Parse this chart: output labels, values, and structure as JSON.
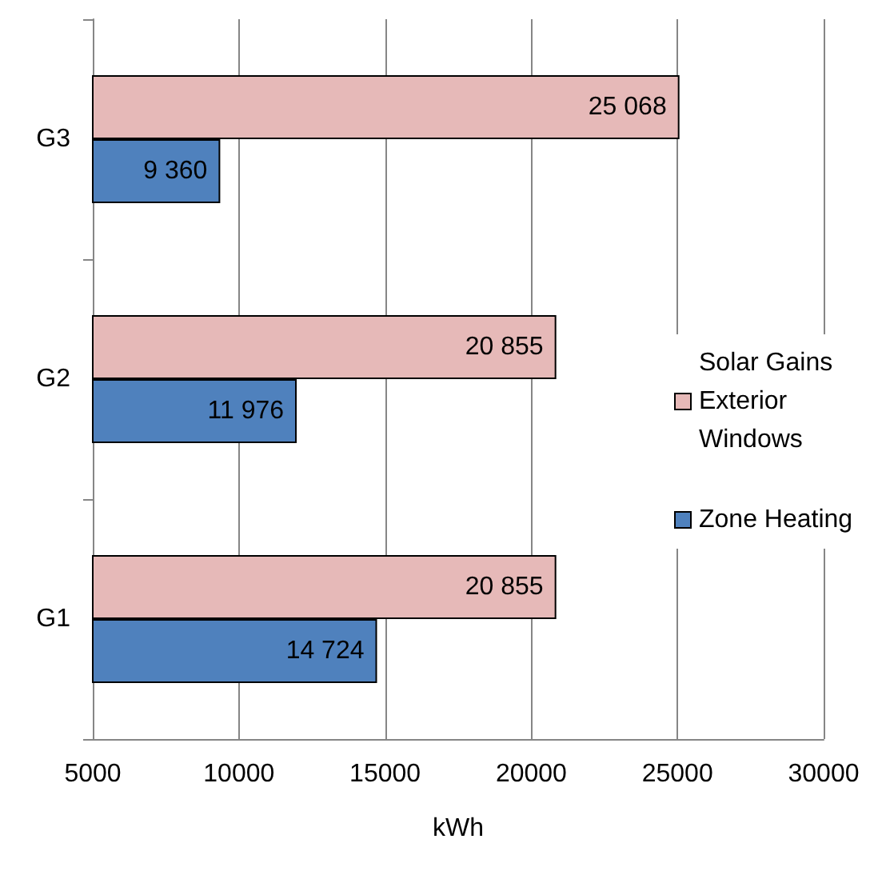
{
  "chart_data": {
    "type": "bar",
    "orientation": "horizontal",
    "xlabel": "kWh",
    "categories": [
      "G3",
      "G2",
      "G1"
    ],
    "series": [
      {
        "name": "Solar Gains Exterior Windows",
        "color": "#e6b9b8",
        "values": [
          25068,
          20855,
          20855
        ],
        "value_labels": [
          "25 068",
          "20 855",
          "20 855"
        ]
      },
      {
        "name": "Zone Heating",
        "color": "#4f81bd",
        "values": [
          9360,
          11976,
          14724
        ],
        "value_labels": [
          "9 360",
          "11 976",
          "14 724"
        ]
      }
    ],
    "xlim": [
      5000,
      30000
    ],
    "xticks": [
      5000,
      10000,
      15000,
      20000,
      25000,
      30000
    ],
    "grid": "x",
    "legend": "right"
  }
}
